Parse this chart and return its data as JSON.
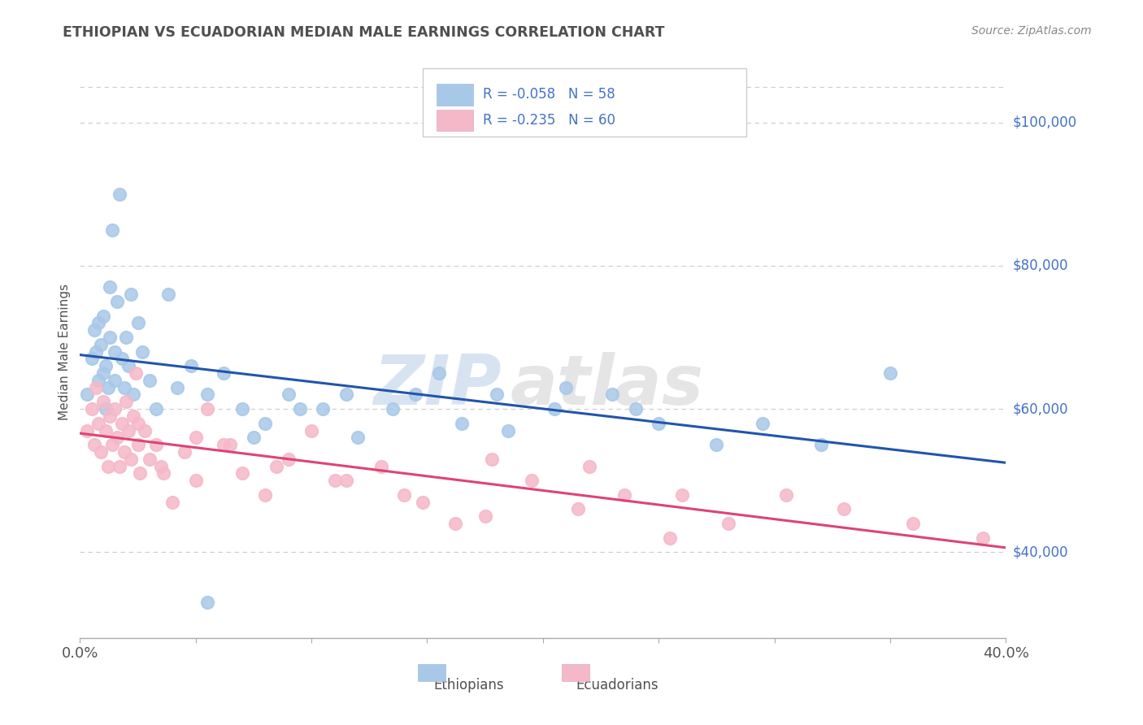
{
  "title": "ETHIOPIAN VS ECUADORIAN MEDIAN MALE EARNINGS CORRELATION CHART",
  "source_text": "Source: ZipAtlas.com",
  "ylabel": "Median Male Earnings",
  "xlim": [
    0.0,
    0.4
  ],
  "ylim": [
    28000,
    108000
  ],
  "yticks": [
    40000,
    60000,
    80000,
    100000
  ],
  "ytick_labels": [
    "$40,000",
    "$60,000",
    "$80,000",
    "$100,000"
  ],
  "xticks": [
    0.0,
    0.05,
    0.1,
    0.15,
    0.2,
    0.25,
    0.3,
    0.35,
    0.4
  ],
  "ethiopian_color": "#a8c8e8",
  "ecuadorian_color": "#f5b8c8",
  "ethiopian_line_color": "#2255aa",
  "ecuadorian_line_color": "#dd4477",
  "legend_text_color": "#4472c4",
  "R_ethiopian": "-0.058",
  "N_ethiopian": "58",
  "R_ecuadorian": "-0.235",
  "N_ecuadorian": "60",
  "watermark": "ZIPatlas",
  "background_color": "#ffffff",
  "grid_color": "#cccccc",
  "right_label_color": "#4472c4",
  "title_color": "#505050",
  "source_color": "#888888",
  "ethiopian_x": [
    0.003,
    0.005,
    0.006,
    0.007,
    0.008,
    0.008,
    0.009,
    0.01,
    0.01,
    0.011,
    0.011,
    0.012,
    0.013,
    0.013,
    0.014,
    0.015,
    0.015,
    0.016,
    0.017,
    0.018,
    0.019,
    0.02,
    0.021,
    0.022,
    0.023,
    0.025,
    0.027,
    0.03,
    0.033,
    0.038,
    0.042,
    0.048,
    0.055,
    0.062,
    0.07,
    0.08,
    0.09,
    0.105,
    0.12,
    0.145,
    0.165,
    0.185,
    0.205,
    0.23,
    0.25,
    0.275,
    0.295,
    0.32,
    0.21,
    0.24,
    0.18,
    0.155,
    0.135,
    0.115,
    0.095,
    0.075,
    0.055,
    0.35
  ],
  "ethiopian_y": [
    62000,
    67000,
    71000,
    68000,
    64000,
    72000,
    69000,
    65000,
    73000,
    60000,
    66000,
    63000,
    77000,
    70000,
    85000,
    64000,
    68000,
    75000,
    90000,
    67000,
    63000,
    70000,
    66000,
    76000,
    62000,
    72000,
    68000,
    64000,
    60000,
    76000,
    63000,
    66000,
    62000,
    65000,
    60000,
    58000,
    62000,
    60000,
    56000,
    62000,
    58000,
    57000,
    60000,
    62000,
    58000,
    55000,
    58000,
    55000,
    63000,
    60000,
    62000,
    65000,
    60000,
    62000,
    60000,
    56000,
    33000,
    65000
  ],
  "ecuadorian_x": [
    0.003,
    0.005,
    0.006,
    0.007,
    0.008,
    0.009,
    0.01,
    0.011,
    0.012,
    0.013,
    0.014,
    0.015,
    0.016,
    0.017,
    0.018,
    0.019,
    0.02,
    0.021,
    0.022,
    0.023,
    0.024,
    0.025,
    0.026,
    0.028,
    0.03,
    0.033,
    0.036,
    0.04,
    0.045,
    0.05,
    0.055,
    0.062,
    0.07,
    0.08,
    0.09,
    0.1,
    0.115,
    0.13,
    0.148,
    0.162,
    0.178,
    0.195,
    0.215,
    0.235,
    0.255,
    0.28,
    0.305,
    0.33,
    0.36,
    0.39,
    0.025,
    0.035,
    0.05,
    0.065,
    0.085,
    0.11,
    0.14,
    0.175,
    0.22,
    0.26
  ],
  "ecuadorian_y": [
    57000,
    60000,
    55000,
    63000,
    58000,
    54000,
    61000,
    57000,
    52000,
    59000,
    55000,
    60000,
    56000,
    52000,
    58000,
    54000,
    61000,
    57000,
    53000,
    59000,
    65000,
    55000,
    51000,
    57000,
    53000,
    55000,
    51000,
    47000,
    54000,
    50000,
    60000,
    55000,
    51000,
    48000,
    53000,
    57000,
    50000,
    52000,
    47000,
    44000,
    53000,
    50000,
    46000,
    48000,
    42000,
    44000,
    48000,
    46000,
    44000,
    42000,
    58000,
    52000,
    56000,
    55000,
    52000,
    50000,
    48000,
    45000,
    52000,
    48000
  ]
}
